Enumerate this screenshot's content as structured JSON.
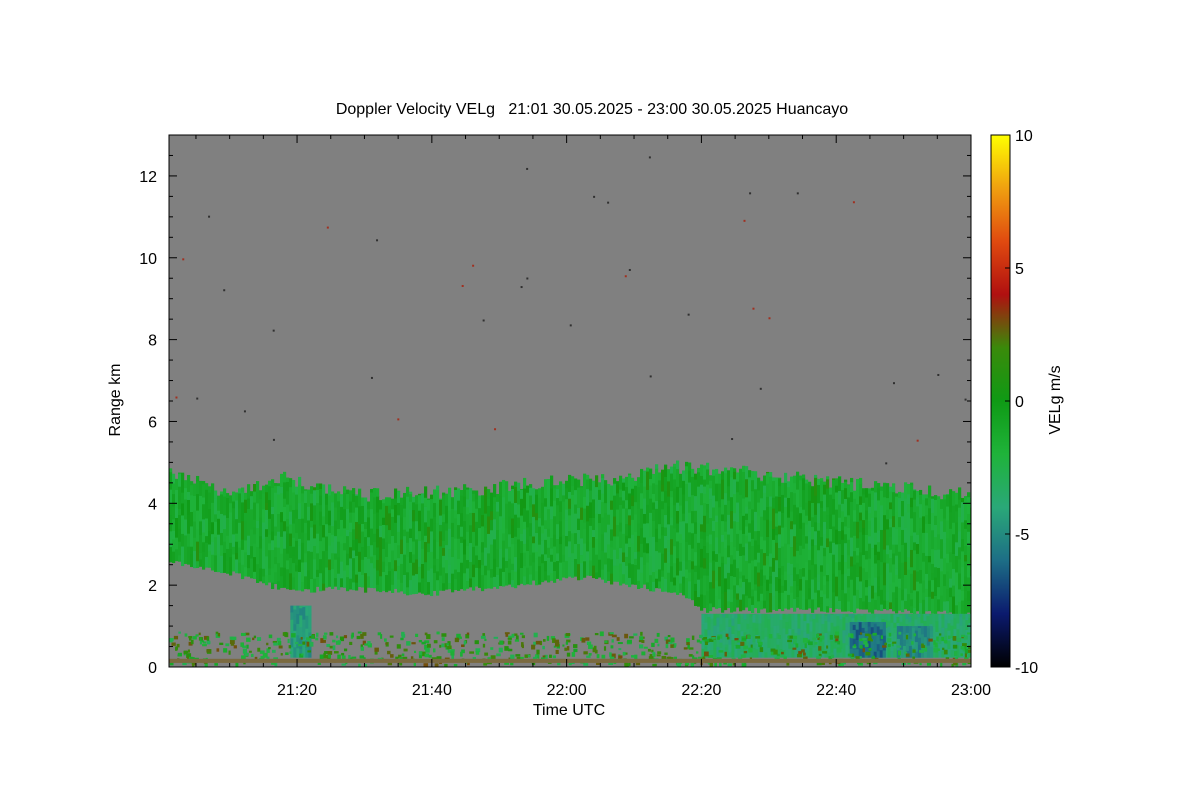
{
  "chart_data": {
    "type": "heatmap",
    "title": "Doppler Velocity VELg   21:01 30.05.2025 - 23:00 30.05.2025 Huancayo",
    "xlabel": "Time UTC",
    "ylabel": "Range km",
    "x_range_minutes_utc": [
      1261,
      1380
    ],
    "x_ticks": [
      {
        "minute": 1280,
        "label": "21:20"
      },
      {
        "minute": 1300,
        "label": "21:40"
      },
      {
        "minute": 1320,
        "label": "22:00"
      },
      {
        "minute": 1340,
        "label": "22:20"
      },
      {
        "minute": 1360,
        "label": "22:40"
      },
      {
        "minute": 1380,
        "label": "23:00"
      }
    ],
    "ylim": [
      0,
      13
    ],
    "y_ticks": [
      0,
      2,
      4,
      6,
      8,
      10,
      12
    ],
    "colorbar": {
      "label": "VELg m/s",
      "range": [
        -10,
        10
      ],
      "ticks": [
        {
          "value": 10,
          "label": "10"
        },
        {
          "value": 5,
          "label": "5"
        },
        {
          "value": 0,
          "label": "0"
        },
        {
          "value": -5,
          "label": "-5"
        },
        {
          "value": -10,
          "label": "-10"
        }
      ],
      "colors": [
        "#000000",
        "#0b1a6e",
        "#1d6e86",
        "#2aa878",
        "#1fb33a",
        "#0f9a15",
        "#3a8a0a",
        "#b01010",
        "#e04a10",
        "#f0a010",
        "#ffff00"
      ]
    },
    "no_signal_color": "#808080",
    "cloud_layer": {
      "top_km": [
        {
          "minute": 1261,
          "km": 4.8
        },
        {
          "minute": 1270,
          "km": 4.2
        },
        {
          "minute": 1278,
          "km": 4.6
        },
        {
          "minute": 1290,
          "km": 4.2
        },
        {
          "minute": 1305,
          "km": 4.3
        },
        {
          "minute": 1315,
          "km": 4.5
        },
        {
          "minute": 1327,
          "km": 4.6
        },
        {
          "minute": 1335,
          "km": 4.9
        },
        {
          "minute": 1345,
          "km": 4.8
        },
        {
          "minute": 1360,
          "km": 4.5
        },
        {
          "minute": 1380,
          "km": 4.2
        }
      ],
      "base_km": [
        {
          "minute": 1261,
          "km": 2.6
        },
        {
          "minute": 1270,
          "km": 2.3
        },
        {
          "minute": 1278,
          "km": 1.9
        },
        {
          "minute": 1290,
          "km": 1.9
        },
        {
          "minute": 1300,
          "km": 1.8
        },
        {
          "minute": 1312,
          "km": 2.0
        },
        {
          "minute": 1322,
          "km": 2.2
        },
        {
          "minute": 1330,
          "km": 2.0
        },
        {
          "minute": 1337,
          "km": 1.8
        },
        {
          "minute": 1340,
          "km": 1.4
        },
        {
          "minute": 1360,
          "km": 1.4
        },
        {
          "minute": 1380,
          "km": 1.3
        }
      ],
      "typical_velocity_ms": -1.5
    },
    "precipitation_shafts": [
      {
        "minute_start": 1279,
        "minute_end": 1282,
        "km_top": 1.5,
        "velocity_ms": -4.5
      },
      {
        "minute_start": 1340,
        "minute_end": 1380,
        "km_top": 1.3,
        "velocity_ms": -3.5
      },
      {
        "minute_start": 1362,
        "minute_end": 1367,
        "km_top": 1.1,
        "velocity_ms": -6.0
      },
      {
        "minute_start": 1369,
        "minute_end": 1374,
        "km_top": 1.0,
        "velocity_ms": -5.0
      }
    ],
    "surface_clutter_top_km": 0.8
  }
}
